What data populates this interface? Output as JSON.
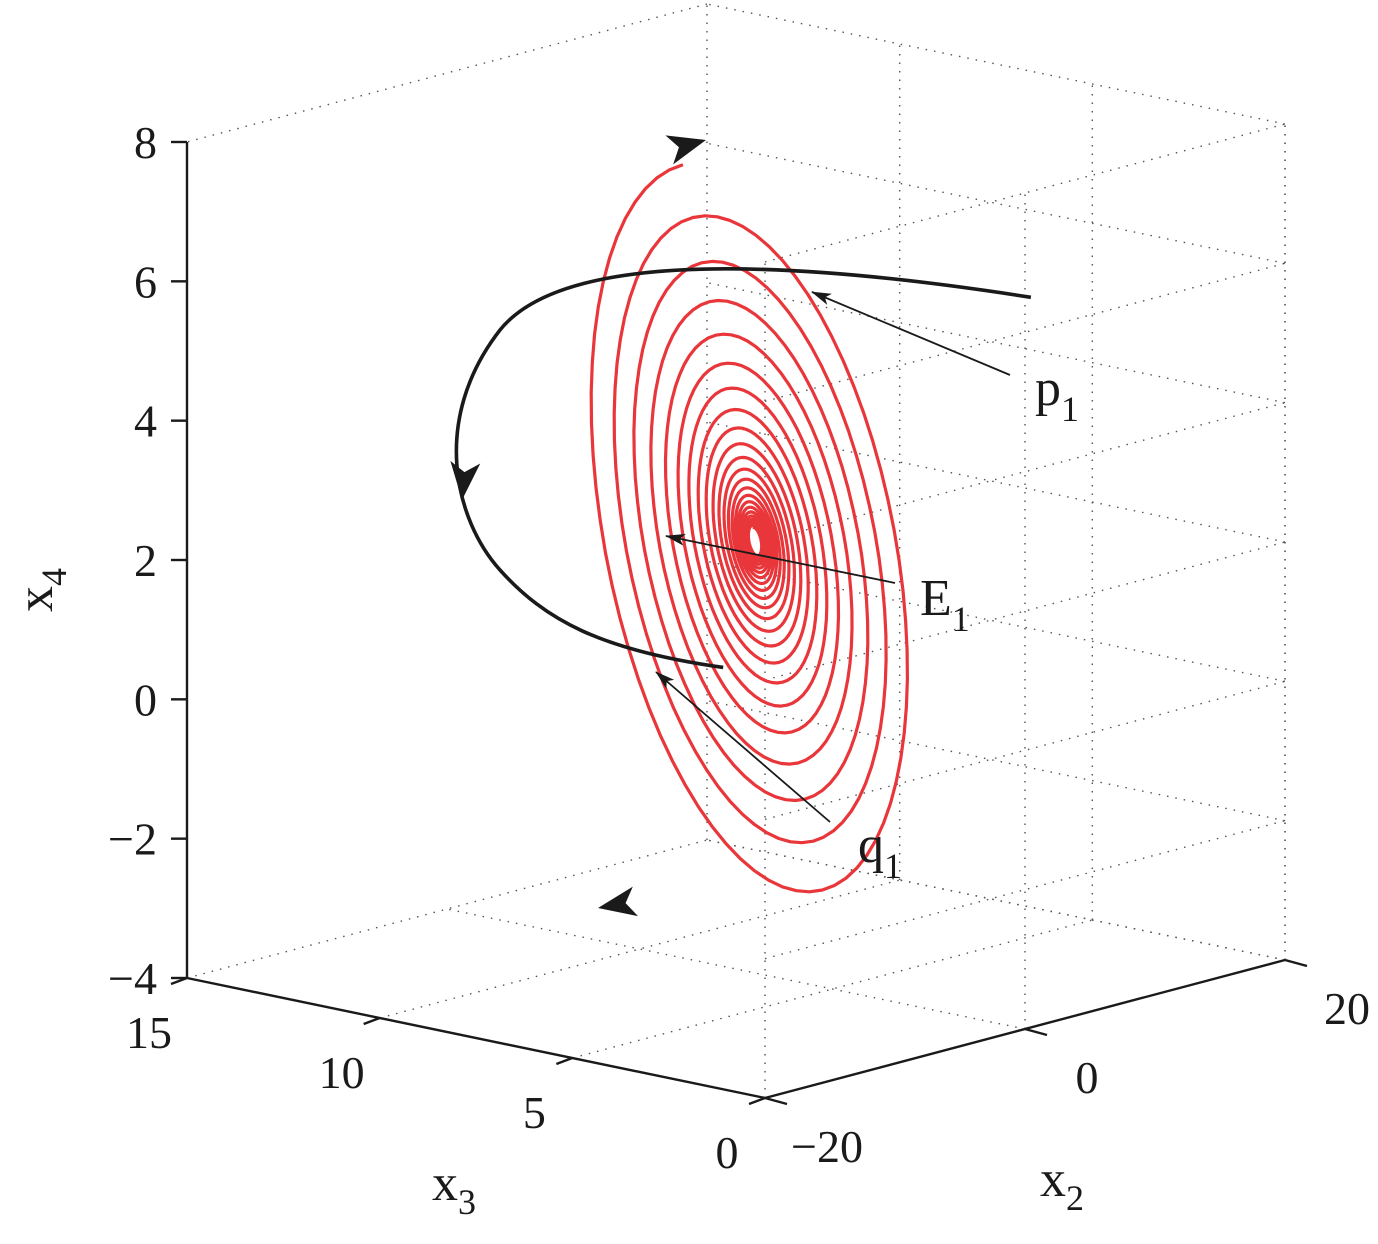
{
  "chart_data": {
    "type": "line",
    "projection": "3d",
    "axes": {
      "x2": {
        "label": "x",
        "label_subscript": "2",
        "range": [
          -20,
          20
        ],
        "ticks": [
          "−20",
          "0",
          "20"
        ]
      },
      "x3": {
        "label": "x",
        "label_subscript": "3",
        "range": [
          0,
          15
        ],
        "ticks": [
          "0",
          "5",
          "10",
          "15"
        ]
      },
      "x4": {
        "label": "x",
        "label_subscript": "4",
        "range": [
          -4,
          8
        ],
        "ticks": [
          "−4",
          "−2",
          "0",
          "2",
          "4",
          "6",
          "8"
        ]
      }
    },
    "grid": true,
    "series": [
      {
        "color": "#e8363a",
        "description": "spiral trajectory converging to E1",
        "center": [
          0,
          7,
          2.2
        ],
        "outer_extent_x4": [
          -3,
          8
        ]
      },
      {
        "color": "#1a1a1a",
        "description": "connecting orbit from p1 to q1",
        "start_x4": 5.9,
        "end_x4": 0.3
      }
    ],
    "annotations": [
      {
        "main": "p",
        "sub": "1"
      },
      {
        "main": "E",
        "sub": "1"
      },
      {
        "main": "q",
        "sub": "1"
      }
    ]
  }
}
